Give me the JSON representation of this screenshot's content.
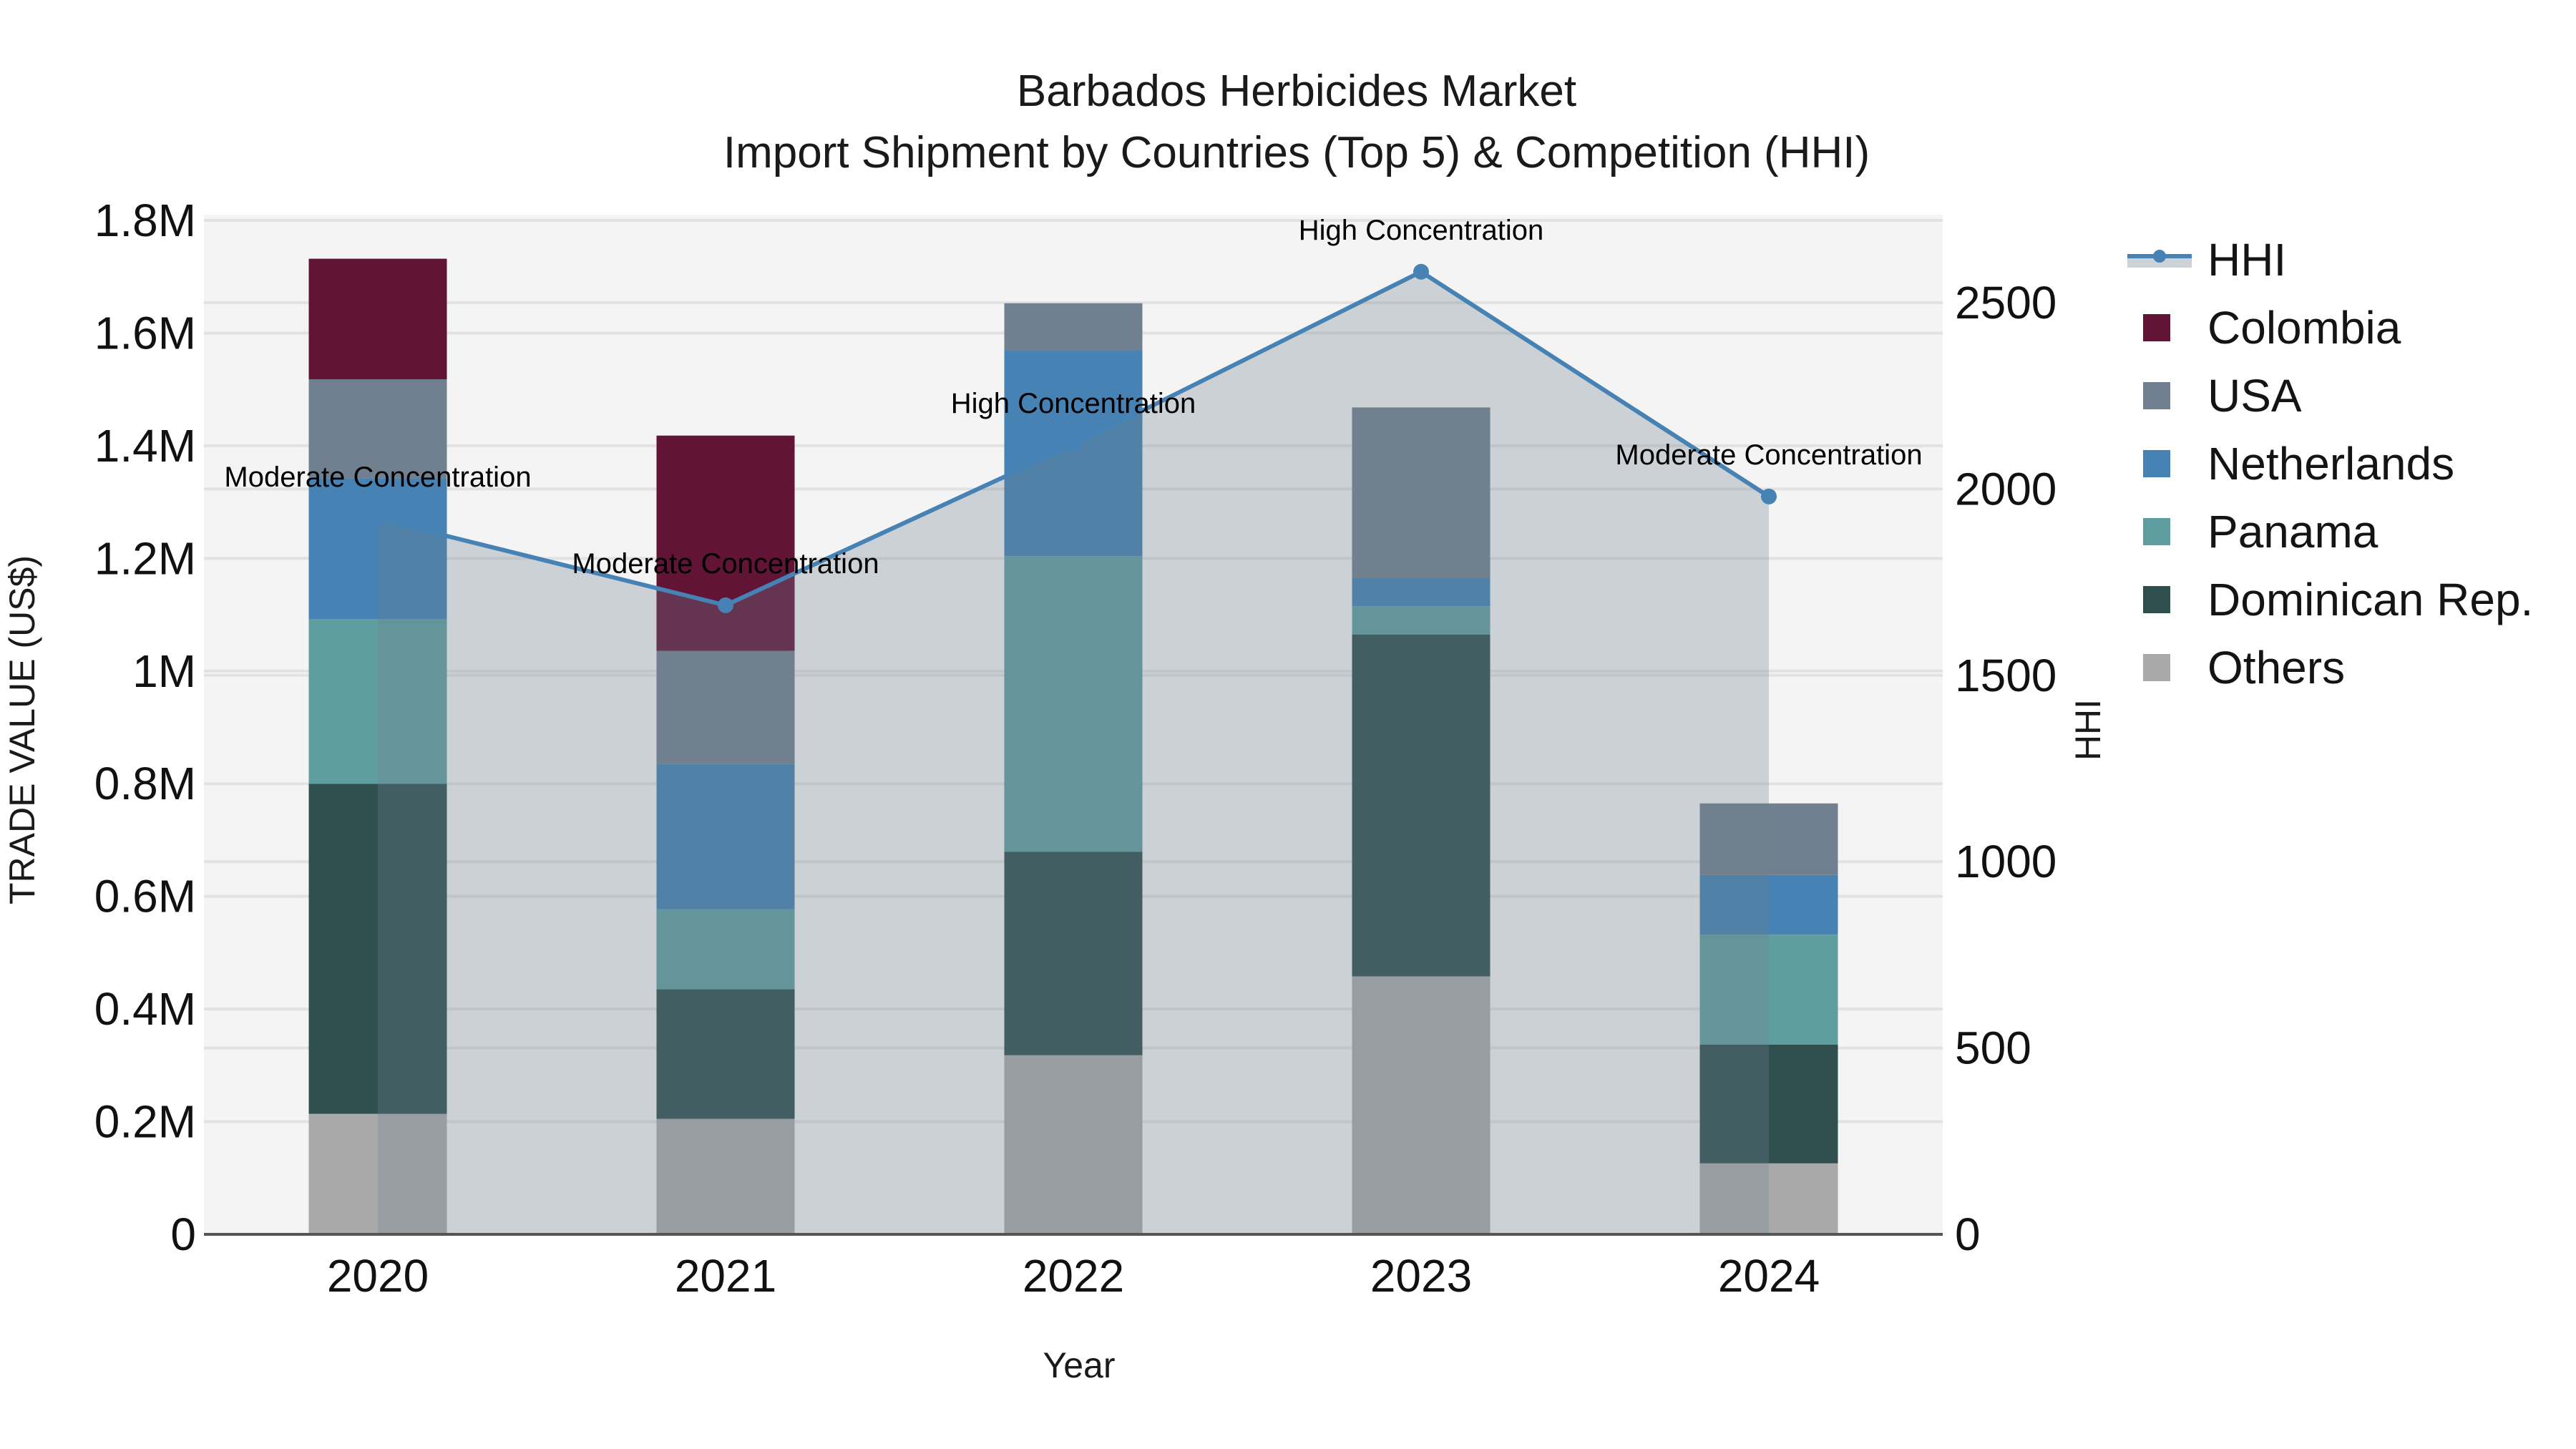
{
  "title": {
    "line1": "Barbados Herbicides Market",
    "line2": "Import Shipment by Countries (Top 5) & Competition (HHI)"
  },
  "axes": {
    "x_title": "Year",
    "y_left_title": "TRADE VALUE (US$)",
    "y_right_title": "HHI",
    "x_ticks": [
      "2020",
      "2021",
      "2022",
      "2023",
      "2024"
    ],
    "y_left_ticks": [
      "0",
      "0.2M",
      "0.4M",
      "0.6M",
      "0.8M",
      "1M",
      "1.2M",
      "1.4M",
      "1.6M",
      "1.8M"
    ],
    "y_right_ticks": [
      "0",
      "500",
      "1000",
      "1500",
      "2000",
      "2500"
    ]
  },
  "legend": {
    "items": [
      {
        "label": "HHI",
        "color": "#4682B4",
        "type": "line-area"
      },
      {
        "label": "Colombia",
        "color": "#611435",
        "type": "bar"
      },
      {
        "label": "USA",
        "color": "#708090",
        "type": "bar"
      },
      {
        "label": "Netherlands",
        "color": "#4682B4",
        "type": "bar"
      },
      {
        "label": "Panama",
        "color": "#5F9EA0",
        "type": "bar"
      },
      {
        "label": "Dominican Rep.",
        "color": "#2F4F4F",
        "type": "bar"
      },
      {
        "label": "Others",
        "color": "#A9A9A9",
        "type": "bar"
      }
    ]
  },
  "annotations": [
    {
      "year": "2020",
      "text": "Moderate Concentration"
    },
    {
      "year": "2021",
      "text": "Moderate Concentration"
    },
    {
      "year": "2022",
      "text": "High Concentration"
    },
    {
      "year": "2023",
      "text": "High Concentration"
    },
    {
      "year": "2024",
      "text": "Moderate Concentration"
    }
  ],
  "colors": {
    "plot_bg": "#F4F4F4",
    "grid": "#E2E2E2",
    "hhi_line": "#4682B4",
    "hhi_fill": "rgba(112,128,144,0.30)",
    "axis_line": "#555555"
  },
  "chart_data": {
    "type": "bar",
    "stacked": true,
    "title": "Barbados Herbicides Market — Import Shipment by Countries (Top 5) & Competition (HHI)",
    "xlabel": "Year",
    "ylabel": "TRADE VALUE (US$)",
    "y2label": "HHI",
    "categories": [
      "2020",
      "2021",
      "2022",
      "2023",
      "2024"
    ],
    "ylim": [
      0,
      1820000
    ],
    "y2lim": [
      0,
      2740
    ],
    "grid": true,
    "legend_position": "right",
    "series": [
      {
        "name": "Others",
        "type": "bar",
        "color": "#A9A9A9",
        "values": [
          214000,
          205000,
          318000,
          458000,
          126000
        ]
      },
      {
        "name": "Dominican Rep.",
        "type": "bar",
        "color": "#2F4F4F",
        "values": [
          586000,
          230000,
          361000,
          607000,
          211000
        ]
      },
      {
        "name": "Panama",
        "type": "bar",
        "color": "#5F9EA0",
        "values": [
          292000,
          142000,
          525000,
          50000,
          195000
        ]
      },
      {
        "name": "Netherlands",
        "type": "bar",
        "color": "#4682B4",
        "values": [
          250000,
          258000,
          366000,
          51000,
          106000
        ]
      },
      {
        "name": "USA",
        "type": "bar",
        "color": "#708090",
        "values": [
          176000,
          201000,
          83000,
          302000,
          127000
        ]
      },
      {
        "name": "Colombia",
        "type": "bar",
        "color": "#611435",
        "values": [
          214000,
          382000,
          0,
          0,
          0
        ]
      },
      {
        "name": "HHI",
        "type": "line+area",
        "axis": "y2",
        "color": "#4682B4",
        "values": [
          1920,
          1688,
          2118,
          2583,
          1980
        ]
      }
    ],
    "annotations": [
      "Moderate Concentration",
      "Moderate Concentration",
      "High Concentration",
      "High Concentration",
      "Moderate Concentration"
    ]
  }
}
